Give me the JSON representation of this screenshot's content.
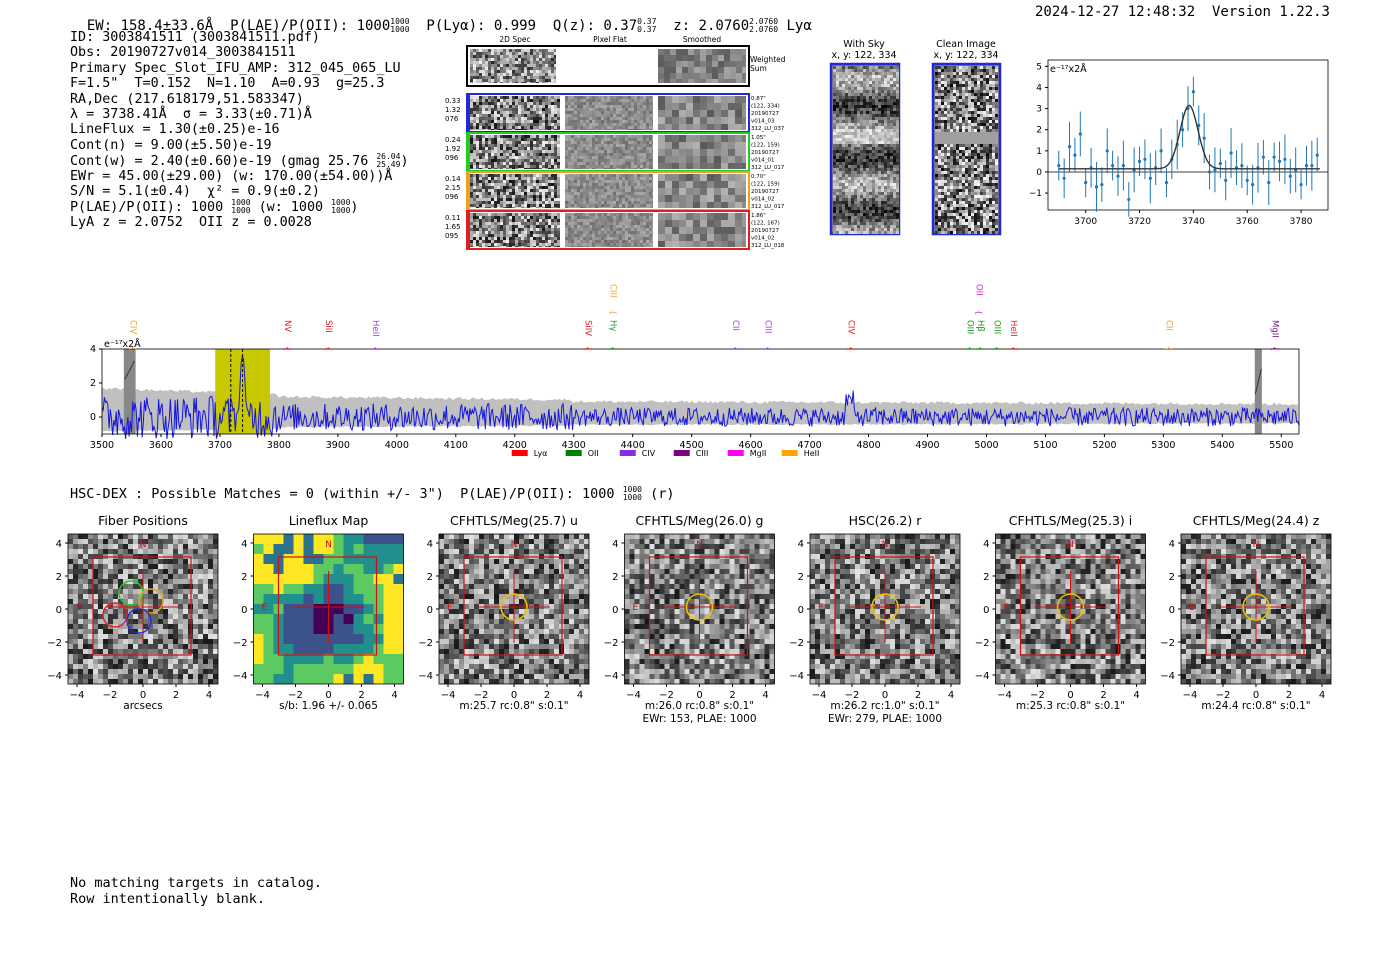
{
  "header": {
    "left_text": "EW: 158.4±33.6Å  P(LAE)/P(OII): 1000",
    "left_frac_top": "1000",
    "left_frac_bot": "1000",
    "plya_text": "  P(Lyα): 0.999  Q(z): 0.37",
    "qz_top": "0.37",
    "qz_bot": "0.37",
    "z_text": "  z: 2.0760",
    "z_top": "2.0760",
    "z_bot": "2.0760",
    "z_tail": " Lyα",
    "datetime_version": "2024-12-27 12:48:32  Version 1.22.3"
  },
  "info": {
    "lines": [
      "ID: 3003841511 (3003841511.pdf)",
      "Obs: 20190727v014_3003841511",
      "Primary Spec_Slot_IFU_AMP: 312_045_065_LU",
      "F=1.5\"  T=0.152  N=1.10  A=0.93  g=25.3",
      "RA,Dec (217.618179,51.583347)",
      "λ = 3738.41Å  σ = 3.33(±0.71)Å",
      "LineFlux = 1.30(±0.25)e-16",
      "Cont(n) = 9.00(±5.50)e-19",
      "Cont(w) = 2.40(±0.60)e-19 (gmag 25.76",
      "EWr = 45.00(±29.00) (w: 170.00(±54.00))Å",
      "S/N = 5.1(±0.4)  χ² = 0.9(±0.2)",
      "P(LAE)/P(OII): 1000",
      "LyA z = 2.0752  OII z = 0.0028"
    ],
    "gmag_top": "26.04",
    "gmag_bot": "25.49",
    "plae_top": "1000",
    "plae_bot": "1000",
    "plae_w": " (w: 1000",
    "plae_w_top": "1000",
    "plae_w_bot": "1000",
    "plae_w_close": ")"
  },
  "cutouts": {
    "col_headers": [
      "2D Spec",
      "Pixel Flat",
      "Smoothed"
    ],
    "weighted_sum": "Weighted Sum",
    "rows": [
      {
        "left": [
          "0.33",
          "1.32",
          "076"
        ],
        "right": [
          "0.87\"",
          "(122, 334)",
          "20190727",
          "v014_03",
          "312_LU_037"
        ],
        "color": "#1f2bd8"
      },
      {
        "left": [
          "0.24",
          "1.92",
          "096"
        ],
        "right": [
          "1.05\"",
          "(122, 159)",
          "20190727",
          "v014_01",
          "312_LU_017"
        ],
        "color": "#22cc22"
      },
      {
        "left": [
          "0.14",
          "2.15",
          "096"
        ],
        "right": [
          "0.70\"",
          "(122, 159)",
          "20190727",
          "v014_02",
          "312_LU_017"
        ],
        "color": "#f0a020"
      },
      {
        "left": [
          "0.11",
          "1.65",
          "095"
        ],
        "right": [
          "1.86\"",
          "(122, 167)",
          "20190727",
          "v014_02",
          "312_LU_018"
        ],
        "color": "#e02020"
      }
    ],
    "with_sky_title": "With Sky",
    "with_sky_xy": "x, y: 122, 334",
    "clean_title": "Clean Image",
    "clean_xy": "x, y: 122, 334"
  },
  "zoom_plot": {
    "unit_label": "e⁻¹⁷x2Å",
    "x_ticks": [
      "3700",
      "3720",
      "3740",
      "3760",
      "3780"
    ],
    "y_ticks": [
      "5",
      "4",
      "3",
      "2",
      "1",
      "0",
      "−1"
    ]
  },
  "full_spectrum": {
    "unit_label": "e⁻¹⁷x2Å",
    "y_ticks": [
      "4",
      "2",
      "0"
    ],
    "x_ticks": [
      "3500",
      "3600",
      "3700",
      "3800",
      "3900",
      "4000",
      "4100",
      "4200",
      "4300",
      "4400",
      "4500",
      "4600",
      "4700",
      "4800",
      "4900",
      "5000",
      "5100",
      "5200",
      "5300",
      "5400",
      "5500"
    ],
    "line_labels": [
      {
        "name": "CIV",
        "color": "#f0a020",
        "wave": 3548,
        "row": 1
      },
      {
        "name": "NV",
        "color": "#e02020",
        "wave": 3810,
        "row": 1
      },
      {
        "name": "SiII",
        "color": "#e02020",
        "wave": 3880,
        "row": 1
      },
      {
        "name": "HeII",
        "color": "#a040e0",
        "wave": 3960,
        "row": 1
      },
      {
        "name": "SiIV",
        "color": "#e02020",
        "wave": 4320,
        "row": 1
      },
      {
        "name": "CIII",
        "color": "#f0a020",
        "wave": 4362,
        "row": 0
      },
      {
        "name": "Hγ",
        "color": "#1a9a1a",
        "wave": 4362,
        "row": 1
      },
      {
        "name": "CII",
        "color": "#a040e0",
        "wave": 4570,
        "row": 1
      },
      {
        "name": "CIII",
        "color": "#a040e0",
        "wave": 4625,
        "row": 1
      },
      {
        "name": "CIV",
        "color": "#e02020",
        "wave": 4766,
        "row": 1
      },
      {
        "name": "Hβ",
        "color": "#1a9a1a",
        "wave": 4986,
        "row": 1
      },
      {
        "name": "OII",
        "color": "#e020e0",
        "wave": 4983,
        "row": 0
      },
      {
        "name": "OIII",
        "color": "#1a9a1a",
        "wave": 4968,
        "row": 1
      },
      {
        "name": "OIII",
        "color": "#1a9a1a",
        "wave": 5014,
        "row": 1
      },
      {
        "name": "HeII",
        "color": "#e02020",
        "wave": 5042,
        "row": 1
      },
      {
        "name": "CII",
        "color": "#f0a020",
        "wave": 5305,
        "row": 1
      },
      {
        "name": "MgII",
        "color": "#7a1a8a",
        "wave": 5485,
        "row": 1
      }
    ],
    "legend": [
      {
        "name": "Lyα",
        "color": "#ff0000"
      },
      {
        "name": "OII",
        "color": "#008000"
      },
      {
        "name": "CIV",
        "color": "#8a2be2"
      },
      {
        "name": "CIII",
        "color": "#800080"
      },
      {
        "name": "MgII",
        "color": "#ff00ff"
      },
      {
        "name": "HeII",
        "color": "#ffa500"
      }
    ]
  },
  "hsc_line": {
    "text": "HSC-DEX : Possible Matches = 0 (within +/- 3\")  P(LAE)/P(OII): 1000",
    "top": "1000",
    "bot": "1000",
    "tail": " (r)"
  },
  "thumbs": [
    {
      "title": "Fiber Positions",
      "sub1": "arcsecs",
      "sub2": "",
      "kind": "fibers"
    },
    {
      "title": "Lineflux Map",
      "sub1": "s/b: 1.96 +/- 0.065",
      "sub2": "",
      "kind": "lineflux"
    },
    {
      "title": "CFHTLS/Meg(25.7) u",
      "sub1": "m:25.7 rc:0.8\"  s:0.1\"",
      "sub2": "",
      "kind": "noise"
    },
    {
      "title": "CFHTLS/Meg(26.0) g",
      "sub1": "m:26.0 rc:0.8\"  s:0.1\"",
      "sub2": "EWr: 153, PLAE: 1000",
      "kind": "noise"
    },
    {
      "title": "HSC(26.2) r",
      "sub1": "m:26.2 rc:1.0\"  s:0.1\"",
      "sub2": "EWr: 279, PLAE: 1000",
      "kind": "noise"
    },
    {
      "title": "CFHTLS/Meg(25.3) i",
      "sub1": "m:25.3 rc:0.8\"  s:0.1\"",
      "sub2": "",
      "kind": "noise"
    },
    {
      "title": "CFHTLS/Meg(24.4) z",
      "sub1": "m:24.4 rc:0.8\"  s:0.1\"",
      "sub2": "",
      "kind": "noise"
    }
  ],
  "thumb_axis": {
    "ticks": [
      "4",
      "2",
      "0",
      "−2",
      "−4"
    ],
    "xticks": [
      "−4",
      "−2",
      "0",
      "2",
      "4"
    ],
    "north": "N",
    "east": "E"
  },
  "footer": [
    "No matching targets in catalog.",
    "Row intentionally blank."
  ],
  "chart_data": [
    {
      "type": "line",
      "title": "",
      "xlabel": "",
      "ylabel": "e⁻¹⁷x2Å",
      "xlim": [
        3500,
        5530
      ],
      "ylim": [
        -1,
        4
      ],
      "highlight_region": [
        3692,
        3785
      ],
      "line_center": 3738.41,
      "series": [
        {
          "name": "",
          "description_values": "noisy spectrum, peak ≈3.8 at 3738Å"
        }
      ]
    },
    {
      "type": "scatter",
      "title": "",
      "ylabel": "e⁻¹⁷x2Å",
      "xlim": [
        3686,
        3790
      ],
      "ylim": [
        -1.8,
        5.3
      ],
      "fit": {
        "center": 3738.41,
        "sigma": 3.33,
        "amplitude": 3.0
      },
      "x": [
        3690,
        3692,
        3694,
        3696,
        3698,
        3700,
        3702,
        3704,
        3706,
        3708,
        3710,
        3712,
        3714,
        3716,
        3718,
        3720,
        3722,
        3724,
        3726,
        3728,
        3730,
        3732,
        3734,
        3736,
        3738,
        3740,
        3742,
        3744,
        3746,
        3748,
        3750,
        3752,
        3754,
        3756,
        3758,
        3760,
        3762,
        3764,
        3766,
        3768,
        3770,
        3772,
        3774,
        3776,
        3778,
        3780,
        3782,
        3784,
        3786
      ],
      "y": [
        0.3,
        -0.3,
        1.2,
        0.8,
        1.8,
        -0.5,
        0.2,
        -0.7,
        -0.6,
        1.0,
        0.3,
        -0.2,
        0.3,
        -1.3,
        0.1,
        0.5,
        0.6,
        -0.3,
        0.2,
        1.0,
        -0.5,
        0.6,
        1.3,
        2.0,
        3.0,
        3.8,
        2.2,
        1.6,
        0.0,
        0.1,
        0.4,
        -0.4,
        0.9,
        0.2,
        0.3,
        -0.4,
        -0.6,
        0.2,
        0.7,
        -0.5,
        0.7,
        0.5,
        0.6,
        -0.2,
        0.1,
        -0.6,
        0.3,
        0.3,
        0.8
      ]
    }
  ]
}
